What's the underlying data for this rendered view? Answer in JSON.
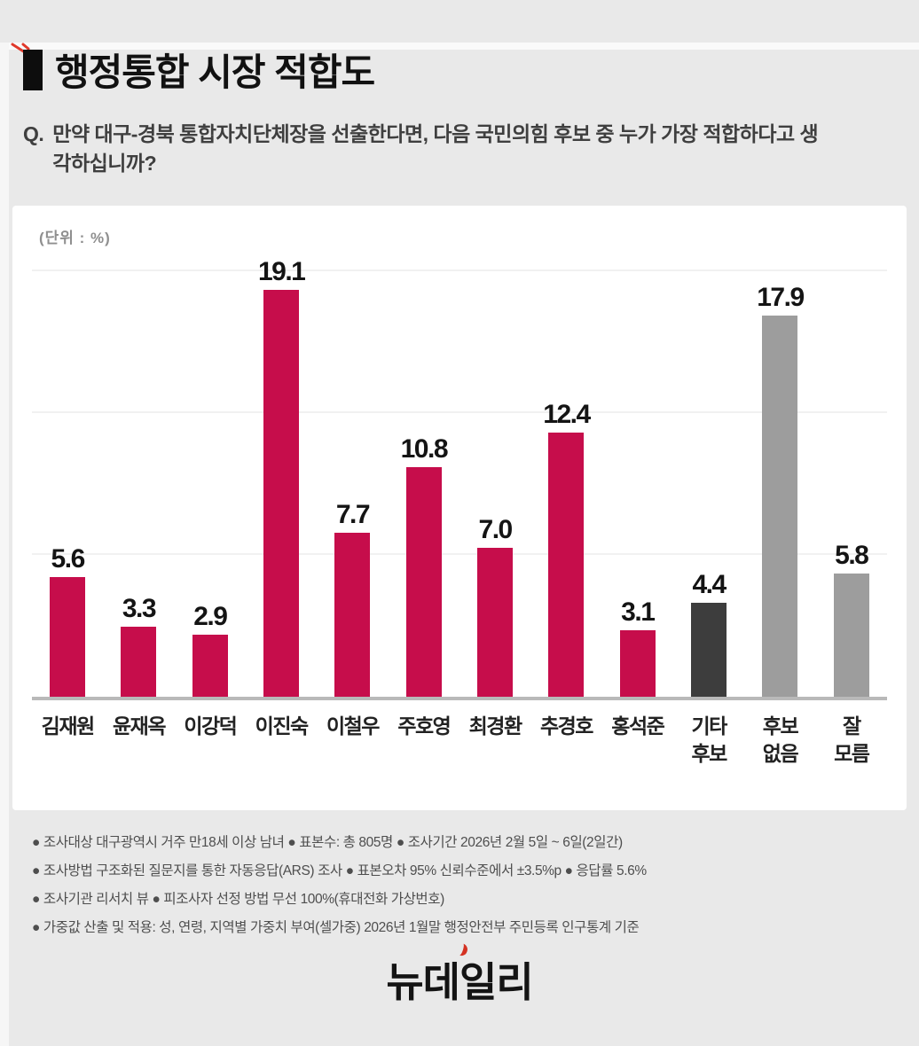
{
  "page": {
    "title": "행정통합 시장 적합도",
    "question_prefix": "Q.",
    "question": "만약 대구-경북 통합자치단체장을 선출한다면, 다음 국민의힘 후보 중 누가 가장 적합하다고 생각하십니까?",
    "unit_label": "(단위 : %)",
    "logo": "뉴데일리"
  },
  "chart_data": {
    "type": "bar",
    "title": "행정통합 시장 적합도",
    "unit": "%",
    "ylim": [
      0,
      20
    ],
    "grid": true,
    "legend": "none",
    "categories": [
      "김재원",
      "윤재옥",
      "이강덕",
      "이진숙",
      "이철우",
      "주호영",
      "최경환",
      "추경호",
      "홍석준",
      "기타 후보",
      "후보 없음",
      "잘 모름"
    ],
    "values": [
      5.6,
      3.3,
      2.9,
      19.1,
      7.7,
      10.8,
      7.0,
      12.4,
      3.1,
      4.4,
      17.9,
      5.8
    ],
    "colors": {
      "crimson": "#c60d4b",
      "dark": "#3d3d3d",
      "gray": "#9d9d9d"
    },
    "bars": [
      {
        "label": "김재원",
        "label2": "",
        "value": "5.6",
        "color": "crimson"
      },
      {
        "label": "윤재옥",
        "label2": "",
        "value": "3.3",
        "color": "crimson"
      },
      {
        "label": "이강덕",
        "label2": "",
        "value": "2.9",
        "color": "crimson"
      },
      {
        "label": "이진숙",
        "label2": "",
        "value": "19.1",
        "color": "crimson"
      },
      {
        "label": "이철우",
        "label2": "",
        "value": "7.7",
        "color": "crimson"
      },
      {
        "label": "주호영",
        "label2": "",
        "value": "10.8",
        "color": "crimson"
      },
      {
        "label": "최경환",
        "label2": "",
        "value": "7.0",
        "color": "crimson"
      },
      {
        "label": "추경호",
        "label2": "",
        "value": "12.4",
        "color": "crimson"
      },
      {
        "label": "홍석준",
        "label2": "",
        "value": "3.1",
        "color": "crimson"
      },
      {
        "label": "기타",
        "label2": "후보",
        "value": "4.4",
        "color": "dark"
      },
      {
        "label": "후보",
        "label2": "없음",
        "value": "17.9",
        "color": "gray"
      },
      {
        "label": "잘",
        "label2": "모름",
        "value": "5.8",
        "color": "gray"
      }
    ]
  },
  "footnotes": {
    "lines": [
      "●  조사대상 대구광역시 거주 만18세 이상 남녀  ●  표본수: 총 805명  ●  조사기간 2026년 2월 5일 ~ 6일(2일간)",
      "●  조사방법 구조화된 질문지를 통한 자동응답(ARS) 조사  ●  표본오차 95% 신뢰수준에서 ±3.5%p  ●  응답률 5.6%",
      "●  조사기관 리서치 뷰  ●  피조사자 선정 방법 무선 100%(휴대전화 가상번호)",
      "●  가중값 산출 및 적용: 성, 연령, 지역별 가중치 부여(셀가중) 2026년 1월말 행정안전부 주민등록 인구통계 기준"
    ]
  }
}
